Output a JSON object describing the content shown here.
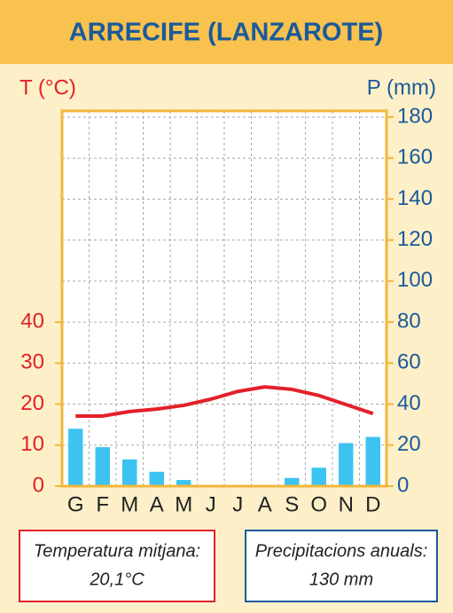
{
  "chart_data": {
    "type": "bar",
    "title": "ARRECIFE (LANZAROTE)",
    "ylabel": "T (°C)",
    "y2label": "P (mm)",
    "categories": [
      "G",
      "F",
      "M",
      "A",
      "M",
      "J",
      "J",
      "A",
      "S",
      "O",
      "N",
      "D"
    ],
    "series": [
      {
        "name": "T (°C)",
        "type": "line",
        "color": "#e3202a",
        "axis": "y",
        "values": [
          17.1,
          17.1,
          18.2,
          18.8,
          19.7,
          21.2,
          23.1,
          24.2,
          23.6,
          22.1,
          19.9,
          17.7
        ]
      },
      {
        "name": "P (mm)",
        "type": "bar",
        "color": "#3cc3f2",
        "axis": "y2",
        "values": [
          28,
          19,
          13,
          7,
          3,
          0,
          0,
          0,
          4,
          9,
          21,
          24
        ]
      }
    ],
    "ylim": [
      0,
      90
    ],
    "yticks": [
      0,
      10,
      20,
      30,
      40
    ],
    "y2lim": [
      0,
      180
    ],
    "y2ticks": [
      0,
      20,
      40,
      60,
      80,
      100,
      120,
      140,
      160,
      180
    ],
    "grid": true,
    "annotations": [
      {
        "label": "Temperatura mitjana:",
        "value": "20,1°C",
        "color": "#e3202a"
      },
      {
        "label": "Precipitacions anuals:",
        "value": "130 mm",
        "color": "#1b5a9a"
      }
    ]
  }
}
